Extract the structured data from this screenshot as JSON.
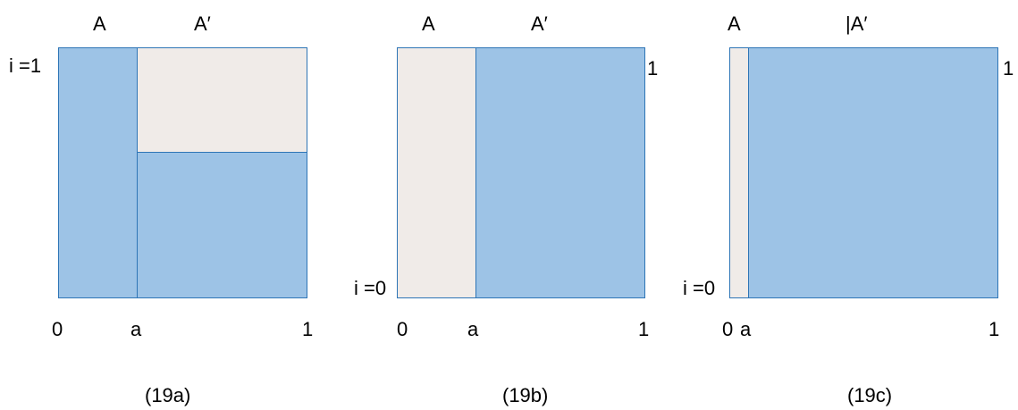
{
  "colors": {
    "blue_fill": "#9dc3e6",
    "cream_fill": "#f0ebe8",
    "outline": "#2e75b6"
  },
  "panels": [
    {
      "caption": "(19a)",
      "top_left_label": "A",
      "top_right_label": "A′",
      "i_label": "i =1",
      "x0_label": "0",
      "xa_label": "a",
      "x1_label": "1"
    },
    {
      "caption": "(19b)",
      "top_left_label": "A",
      "top_right_label": "A′",
      "i_label": "i =0",
      "x0_label": "0",
      "xa_label": "a",
      "x1_label": "1",
      "right_label": "1"
    },
    {
      "caption": "(19c)",
      "top_left_label": "A",
      "top_right_label": "|A′",
      "i_label": "i =0",
      "x0_label": "0",
      "xa_label": "a",
      "x1_label": "1",
      "right_label": "1"
    }
  ]
}
